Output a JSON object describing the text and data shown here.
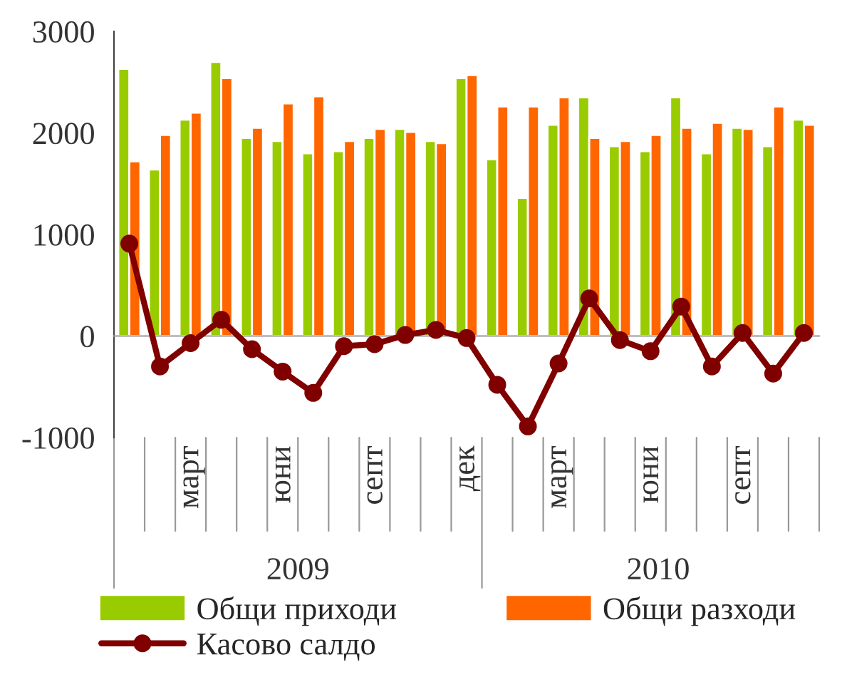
{
  "chart_data": {
    "type": "bar",
    "categories": [
      null,
      null,
      "март",
      null,
      null,
      "юни",
      null,
      null,
      "септ",
      null,
      null,
      "дек",
      null,
      null,
      "март",
      null,
      null,
      "юни",
      null,
      null,
      "септ",
      null,
      null
    ],
    "series": [
      {
        "name": "Общи приходи",
        "color": "#99cc00",
        "values": [
          2630,
          1640,
          2130,
          2700,
          1950,
          1920,
          1800,
          1820,
          1950,
          2040,
          1920,
          2540,
          1740,
          1360,
          2080,
          2350,
          1870,
          1820,
          2350,
          1800,
          2050,
          1870,
          2130
        ]
      },
      {
        "name": "Общи разходи",
        "color": "#ff6600",
        "values": [
          1720,
          1980,
          2200,
          2540,
          2050,
          2290,
          2360,
          1920,
          2040,
          2010,
          1900,
          2570,
          2260,
          2260,
          2350,
          1950,
          1920,
          1980,
          2050,
          2100,
          2040,
          2260,
          2080
        ]
      },
      {
        "name": "Касово салдо",
        "type": "line",
        "color": "#800000",
        "marker": "circle",
        "values": [
          910,
          -300,
          -70,
          160,
          -130,
          -350,
          -560,
          -100,
          -80,
          10,
          60,
          -20,
          -480,
          -890,
          -270,
          370,
          -40,
          -150,
          290,
          -300,
          30,
          -370,
          30
        ]
      }
    ],
    "annotations": [
      "2009",
      "2010"
    ],
    "ylim": [
      -1000,
      3000
    ],
    "yticks": [
      {
        "value": -1000,
        "label": "-1000"
      },
      0,
      1000,
      2000,
      3000
    ],
    "legend": "bottom"
  }
}
